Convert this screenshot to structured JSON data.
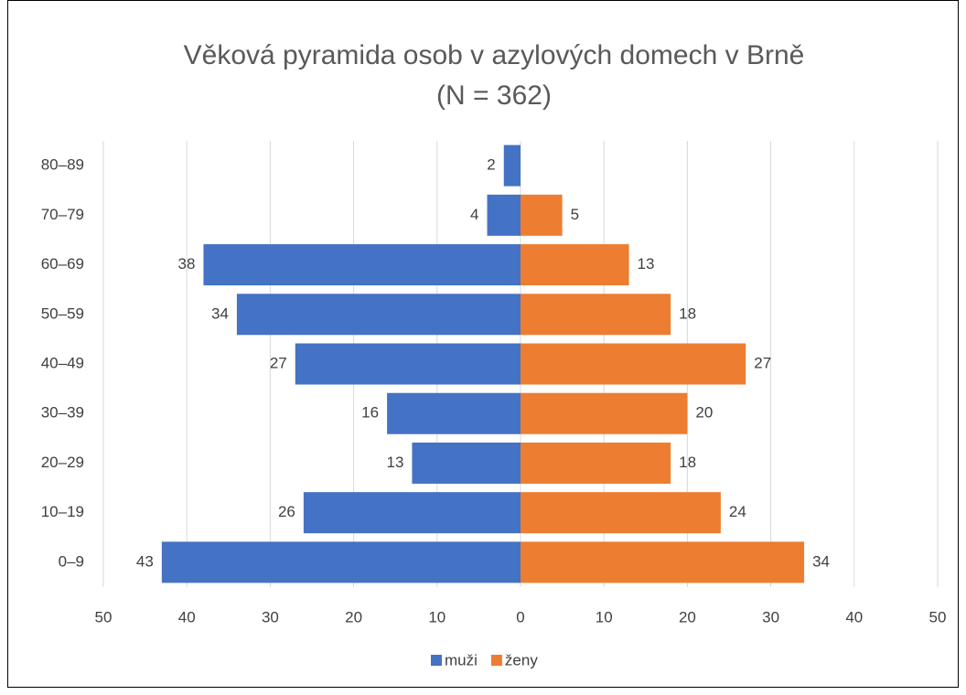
{
  "chart_data": {
    "type": "pyramid",
    "title": [
      "Věková pyramida osob v azylových domech v Brně",
      "(N = 362)"
    ],
    "categories": [
      "80–89",
      "70–79",
      "60–69",
      "50–59",
      "40–49",
      "30–39",
      "20–29",
      "10–19",
      "0–9"
    ],
    "series": [
      {
        "name": "muži",
        "color": "#4472c4",
        "values": [
          -2,
          -4,
          -38,
          -34,
          -27,
          -16,
          -13,
          -26,
          -43
        ],
        "value_labels": [
          "2",
          "4",
          "38",
          "34",
          "27",
          "16",
          "13",
          "26",
          "43"
        ]
      },
      {
        "name": "ženy",
        "color": "#ed7d31",
        "values": [
          null,
          5,
          13,
          18,
          27,
          20,
          18,
          24,
          34
        ]
      }
    ],
    "xlim": [
      -50,
      50
    ],
    "xticks": [
      {
        "value": -50,
        "label": "50"
      },
      {
        "value": -40,
        "label": "40"
      },
      {
        "value": -30,
        "label": "30"
      },
      {
        "value": -20,
        "label": "20"
      },
      {
        "value": -10,
        "label": "10"
      },
      0,
      10,
      20,
      30,
      40,
      50
    ],
    "grid": true,
    "legend": "bottom"
  }
}
